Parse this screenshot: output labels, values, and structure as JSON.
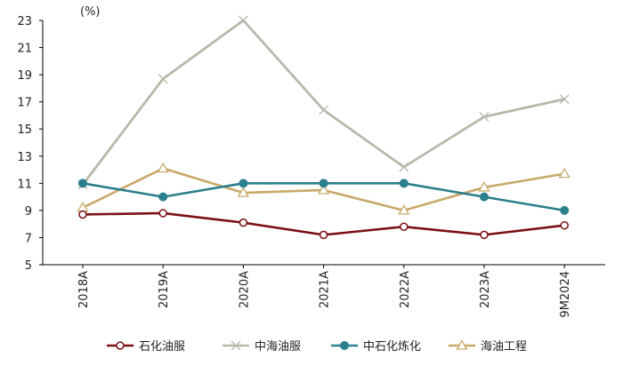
{
  "chart_data": {
    "type": "line",
    "title": "",
    "unit_label": "(%)",
    "categories": [
      "2018A",
      "2019A",
      "2020A",
      "2021A",
      "2022A",
      "2023A",
      "9M2024"
    ],
    "ylim": [
      5,
      23
    ],
    "yticks": [
      5,
      7,
      9,
      11,
      13,
      15,
      17,
      19,
      21,
      23
    ],
    "grid": false,
    "legend_position": "bottom",
    "series": [
      {
        "name": "石化油服",
        "color": "#7a0f14",
        "marker": "circle",
        "values": [
          8.7,
          8.8,
          8.1,
          7.2,
          7.8,
          7.2,
          7.9
        ]
      },
      {
        "name": "中海油服",
        "color": "#b8b8aa",
        "marker": "x",
        "values": [
          10.9,
          18.7,
          23.0,
          16.4,
          12.2,
          15.9,
          17.2
        ]
      },
      {
        "name": "中石化炼化",
        "color": "#2c7f8d",
        "marker": "dot",
        "values": [
          11.0,
          10.0,
          11.0,
          11.0,
          11.0,
          10.0,
          9.0
        ]
      },
      {
        "name": "海油工程",
        "color": "#c9a96a",
        "marker": "triangle",
        "values": [
          9.2,
          12.1,
          10.3,
          10.5,
          9.0,
          10.7,
          11.7
        ]
      }
    ]
  }
}
